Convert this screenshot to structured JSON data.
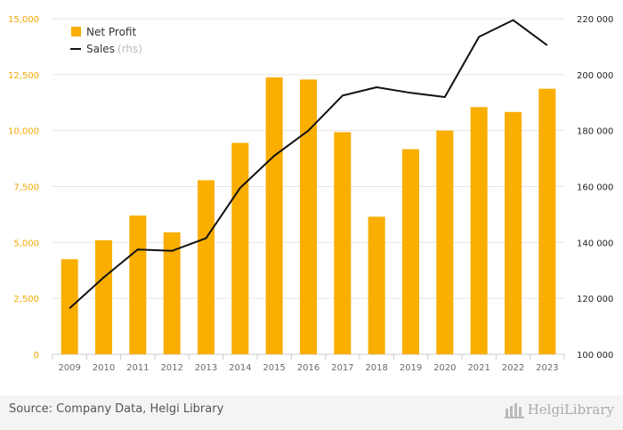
{
  "chart_data": {
    "type": "bar",
    "categories": [
      "2009",
      "2010",
      "2011",
      "2012",
      "2013",
      "2014",
      "2015",
      "2016",
      "2017",
      "2018",
      "2019",
      "2020",
      "2021",
      "2022",
      "2023"
    ],
    "series": [
      {
        "name": "Net Profit",
        "type": "bar",
        "axis": "left",
        "color": "#f9ae00",
        "values": [
          4250,
          5100,
          6200,
          5450,
          7780,
          9450,
          12380,
          12280,
          9930,
          6150,
          9170,
          10000,
          11050,
          10830,
          11870
        ]
      },
      {
        "name": "Sales",
        "type": "line",
        "axis": "right",
        "color": "#111111",
        "values": [
          116500,
          127500,
          137500,
          137000,
          141500,
          159500,
          171000,
          180000,
          192500,
          195500,
          193500,
          192000,
          213500,
          219500,
          210500
        ]
      }
    ],
    "legend": {
      "position": "top-left",
      "items": [
        {
          "label": "Net Profit",
          "suffix": ""
        },
        {
          "label": "Sales",
          "suffix": "(rhs)"
        }
      ]
    },
    "y_left": {
      "ylim": [
        0,
        15000
      ],
      "ticks": [
        0,
        2500,
        5000,
        7500,
        10000,
        12500,
        15000
      ],
      "tick_labels": [
        "0",
        "2,500",
        "5,000",
        "7,500",
        "10,000",
        "12,500",
        "15,000"
      ],
      "color": "#f2a900"
    },
    "y_right": {
      "ylim": [
        100000,
        220000
      ],
      "ticks": [
        100000,
        120000,
        140000,
        160000,
        180000,
        200000,
        220000
      ],
      "tick_labels": [
        "100 000",
        "120 000",
        "140 000",
        "160 000",
        "180 000",
        "200 000",
        "220 000"
      ]
    },
    "grid": true
  },
  "footer": {
    "source": "Source: Company Data, Helgi Library",
    "brand": "HelgiLibrary"
  }
}
